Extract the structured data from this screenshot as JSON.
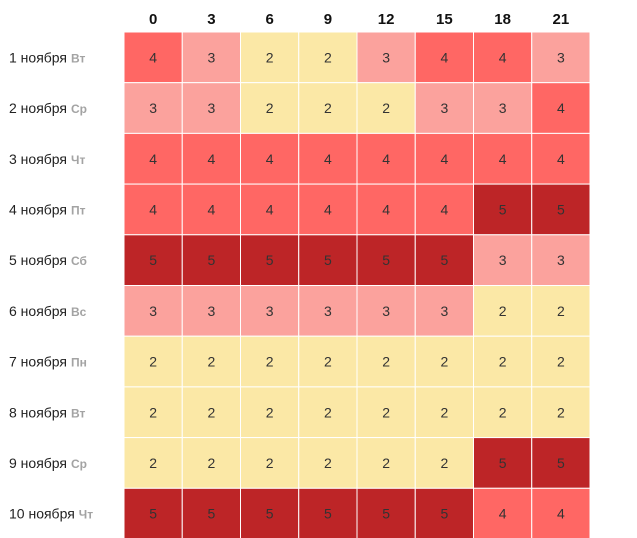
{
  "chart_data": {
    "type": "heatmap",
    "columns": [
      "0",
      "3",
      "6",
      "9",
      "12",
      "15",
      "18",
      "21"
    ],
    "rows": [
      {
        "date": "1 ноября",
        "day": "Вт",
        "values": [
          4,
          3,
          2,
          2,
          3,
          4,
          4,
          3
        ]
      },
      {
        "date": "2 ноября",
        "day": "Ср",
        "values": [
          3,
          3,
          2,
          2,
          2,
          3,
          3,
          4
        ]
      },
      {
        "date": "3 ноября",
        "day": "Чт",
        "values": [
          4,
          4,
          4,
          4,
          4,
          4,
          4,
          4
        ]
      },
      {
        "date": "4 ноября",
        "day": "Пт",
        "values": [
          4,
          4,
          4,
          4,
          4,
          4,
          5,
          5
        ]
      },
      {
        "date": "5 ноября",
        "day": "Сб",
        "values": [
          5,
          5,
          5,
          5,
          5,
          5,
          3,
          3
        ]
      },
      {
        "date": "6 ноября",
        "day": "Вс",
        "values": [
          3,
          3,
          3,
          3,
          3,
          3,
          2,
          2
        ]
      },
      {
        "date": "7 ноября",
        "day": "Пн",
        "values": [
          2,
          2,
          2,
          2,
          2,
          2,
          2,
          2
        ]
      },
      {
        "date": "8 ноября",
        "day": "Вт",
        "values": [
          2,
          2,
          2,
          2,
          2,
          2,
          2,
          2
        ]
      },
      {
        "date": "9 ноября",
        "day": "Ср",
        "values": [
          2,
          2,
          2,
          2,
          2,
          2,
          5,
          5
        ]
      },
      {
        "date": "10 ноября",
        "day": "Чт",
        "values": [
          5,
          5,
          5,
          5,
          5,
          5,
          4,
          4
        ]
      }
    ],
    "color_scale": {
      "2": "#fbe8a6",
      "3": "#fba29d",
      "4": "#ff6764",
      "5": "#bd2527"
    }
  }
}
